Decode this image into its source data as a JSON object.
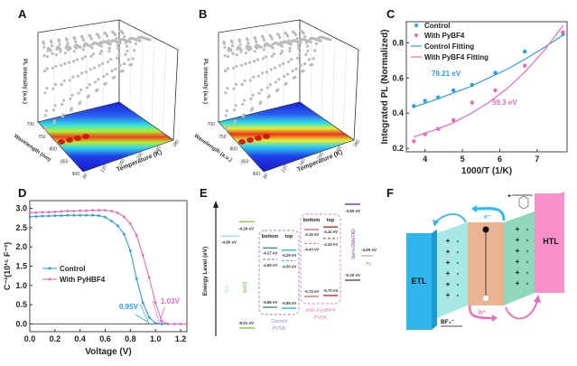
{
  "panels": {
    "A": {
      "label": "A"
    },
    "B": {
      "label": "B"
    },
    "C": {
      "label": "C"
    },
    "D": {
      "label": "D"
    },
    "E": {
      "label": "E"
    },
    "F": {
      "label": "F"
    }
  },
  "chart_data": [
    {
      "id": "A",
      "type": "heatmap",
      "title": "",
      "zlabel": "PL Intensity (a.u.)",
      "ylabel": "Wavelength (nm)",
      "xlabel": "Temperature (K)",
      "y_ticks": [
        "700",
        "750",
        "800",
        "850",
        "900"
      ],
      "x_ticks": [
        "80",
        "120",
        "160",
        "200",
        "240",
        "280"
      ],
      "peak_wavelength_nm": 790,
      "series_count": 11
    },
    {
      "id": "B",
      "type": "heatmap",
      "title": "",
      "zlabel": "PL Intensity (a.u.)",
      "ylabel": "Wavelength (a.u.)",
      "xlabel": "Temperature (K)",
      "y_ticks": [
        "700",
        "750",
        "800",
        "850",
        "900"
      ],
      "x_ticks": [
        "80",
        "120",
        "160",
        "200",
        "240",
        "280"
      ],
      "peak_wavelength_nm": 780,
      "series_count": 11
    },
    {
      "id": "C",
      "type": "scatter",
      "xlabel": "1000/T (1/K)",
      "ylabel": "Integrated PL (Normalized)",
      "xlim": [
        3.5,
        7.8
      ],
      "ylim": [
        0.18,
        0.92
      ],
      "x_ticks": [
        "4",
        "5",
        "6",
        "7"
      ],
      "y_ticks": [
        "0.2",
        "0.4",
        "0.6",
        "0.8"
      ],
      "legend": [
        "Control",
        "With PyBF4",
        "Control Fitting",
        "With PyBF4 Fitting"
      ],
      "legend_placement": "top-left",
      "annotations": [
        {
          "text": "79.21 eV",
          "color": "#2a9fe0"
        },
        {
          "text": "59.3 eV",
          "color": "#e86ab8"
        }
      ],
      "series": [
        {
          "name": "Control",
          "color": "#2a9fe0",
          "x": [
            3.7,
            4.0,
            4.35,
            4.76,
            5.26,
            5.88,
            6.67,
            7.69
          ],
          "y": [
            0.44,
            0.47,
            0.49,
            0.53,
            0.56,
            0.63,
            0.75,
            0.85
          ]
        },
        {
          "name": "With PyBF4",
          "color": "#e86ab8",
          "x": [
            3.7,
            4.0,
            4.35,
            4.76,
            5.26,
            5.88,
            6.67,
            7.69
          ],
          "y": [
            0.24,
            0.28,
            0.31,
            0.36,
            0.46,
            0.53,
            0.67,
            0.86
          ]
        },
        {
          "name": "Control Fitting",
          "color": "#2a9fe0",
          "line": true,
          "x": [
            3.7,
            4.2,
            4.7,
            5.2,
            5.7,
            6.2,
            6.7,
            7.2,
            7.7
          ],
          "y": [
            0.435,
            0.47,
            0.51,
            0.55,
            0.6,
            0.65,
            0.71,
            0.775,
            0.845
          ]
        },
        {
          "name": "With PyBF4 Fitting",
          "color": "#e86ab8",
          "line": true,
          "x": [
            3.7,
            4.2,
            4.7,
            5.2,
            5.7,
            6.2,
            6.7,
            7.2,
            7.7
          ],
          "y": [
            0.265,
            0.3,
            0.34,
            0.395,
            0.46,
            0.54,
            0.64,
            0.76,
            0.9
          ]
        }
      ]
    },
    {
      "id": "D",
      "type": "line",
      "xlabel": "Voltage (V)",
      "ylabel": "C⁻²(10¹⁵ F⁻²)",
      "xlim": [
        0.0,
        1.25
      ],
      "ylim": [
        -0.2,
        3.2
      ],
      "x_ticks": [
        "0.0",
        "0.2",
        "0.4",
        "0.6",
        "0.8",
        "1.0",
        "1.2"
      ],
      "y_ticks": [
        "0.0",
        "0.5",
        "1.0",
        "1.5",
        "2.0",
        "2.5",
        "3.0"
      ],
      "legend": [
        "Control",
        "With PyHBF4"
      ],
      "legend_placement": "center-left",
      "annotations": [
        {
          "text": "0.95V",
          "color": "#2a9fe0"
        },
        {
          "text": "1.03V",
          "color": "#e86ab8"
        }
      ],
      "series": [
        {
          "name": "Control",
          "color": "#2a9fe0",
          "x": [
            0.0,
            0.05,
            0.1,
            0.15,
            0.2,
            0.25,
            0.3,
            0.35,
            0.4,
            0.45,
            0.5,
            0.55,
            0.6,
            0.65,
            0.7,
            0.75,
            0.8,
            0.85,
            0.9,
            0.95,
            1.0,
            1.05
          ],
          "y": [
            2.78,
            2.79,
            2.8,
            2.8,
            2.81,
            2.81,
            2.82,
            2.82,
            2.82,
            2.82,
            2.82,
            2.81,
            2.77,
            2.67,
            2.55,
            2.33,
            1.9,
            1.17,
            0.55,
            0.17,
            0.02,
            0.0
          ]
        },
        {
          "name": "With PyHBF4",
          "color": "#e86ab8",
          "x": [
            0.0,
            0.05,
            0.1,
            0.15,
            0.2,
            0.25,
            0.3,
            0.35,
            0.4,
            0.45,
            0.5,
            0.55,
            0.6,
            0.65,
            0.7,
            0.75,
            0.8,
            0.85,
            0.9,
            0.95,
            1.0,
            1.05,
            1.1,
            1.15,
            1.2,
            1.25
          ],
          "y": [
            2.88,
            2.89,
            2.9,
            2.9,
            2.91,
            2.92,
            2.93,
            2.93,
            2.94,
            2.94,
            2.95,
            2.95,
            2.95,
            2.93,
            2.88,
            2.78,
            2.6,
            2.3,
            1.78,
            1.2,
            0.55,
            0.07,
            0.0,
            0.0,
            0.0,
            0.0
          ]
        }
      ]
    }
  ],
  "energy_diagram": {
    "axis_label": "Energy Level (eV)",
    "layers": [
      {
        "name": "ITO",
        "color": "#a8dde6",
        "levels": [
          {
            "value": "-4.80 eV",
            "e": -4.8
          }
        ]
      },
      {
        "name": "SnO2",
        "color": "#8cc850",
        "levels": [
          {
            "value": "-4.29 eV",
            "e": -4.29
          },
          {
            "value": "-8.01 eV",
            "e": -8.01
          }
        ]
      },
      {
        "name": "Spiro-OMeTAD",
        "color": "#7a3fa0",
        "levels": [
          {
            "value": "-3.80 eV",
            "e": -3.8
          },
          {
            "value": "-5.20 eV",
            "e": -5.2
          }
        ]
      },
      {
        "name": "Ag",
        "color": "#aaaaaa",
        "levels": [
          {
            "value": "-4.50 eV",
            "e": -4.5
          }
        ]
      }
    ],
    "groups": [
      {
        "name": "Control PVSK",
        "color": "#8888dd",
        "columns": [
          {
            "label": "bottom",
            "color": "#4a8a8a",
            "cb": "-4.27 eV",
            "ef": "-4.50 eV",
            "vb": "-5.86 eV"
          },
          {
            "label": "top",
            "color": "#29b6e8",
            "cb": "-4.29 eV",
            "ef": "-4.50 eV",
            "vb": "-5.88 eV"
          }
        ]
      },
      {
        "name": "With PyHBF4 PVSK",
        "color": "#f07ac0",
        "columns": [
          {
            "label": "bottom",
            "color": "#e46a6a",
            "cb": "-4.15 eV",
            "ef": "-4.43 eV",
            "vb": "-5.74 eV"
          },
          {
            "label": "top",
            "color": "#b83030",
            "cb": "-4.11 eV",
            "ef": "-4.34 eV",
            "vb": "-5.70 eV"
          }
        ]
      }
    ]
  },
  "schematic": {
    "etl": "ETL",
    "htl": "HTL",
    "electron": "e⁻",
    "hole": "h⁺",
    "anion": "BF₄⁻",
    "plus": "+",
    "minus": "-"
  }
}
